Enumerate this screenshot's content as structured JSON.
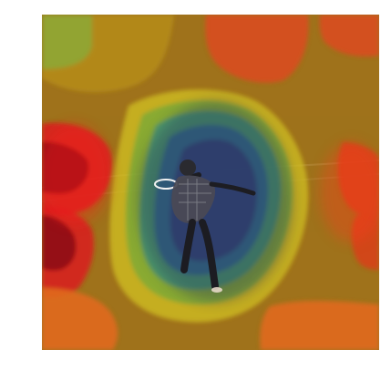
{
  "image": {
    "subject": "heatmap-overlay-on-photo",
    "colors": {
      "hot_red": "#d41c1c",
      "orange": "#e06a1f",
      "yellow": "#d7c21f",
      "green": "#58a845",
      "teal": "#2a8f8f",
      "blue": "#2d5a9a",
      "navy": "#3a3f73",
      "ground": "#7c6a2a"
    }
  }
}
